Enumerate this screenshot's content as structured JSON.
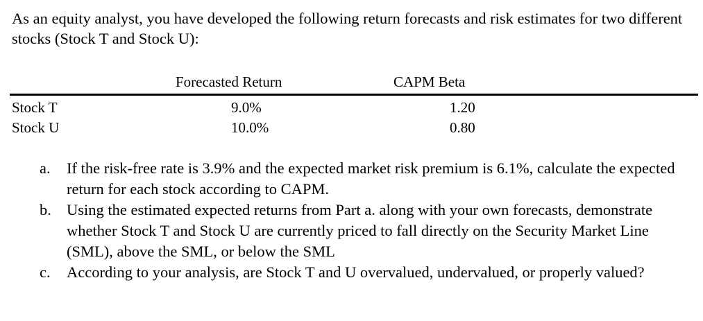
{
  "intro": {
    "text": "As an equity analyst, you have developed the following return forecasts and risk estimates for two different stocks (Stock T and Stock U):"
  },
  "table": {
    "columns": [
      "",
      "Forecasted Return",
      "CAPM Beta"
    ],
    "rows": [
      {
        "name": "Stock T",
        "forecasted_return": "9.0%",
        "capm_beta": "1.20"
      },
      {
        "name": "Stock U",
        "forecasted_return": "10.0%",
        "capm_beta": "0.80"
      }
    ]
  },
  "questions": [
    {
      "letter": "a.",
      "text": "If the risk-free rate is 3.9% and the expected market risk premium is 6.1%, calculate the expected return for each stock according to CAPM."
    },
    {
      "letter": "b.",
      "text": "Using the estimated expected returns from Part a. along with your own forecasts, demonstrate whether Stock T and Stock U are currently priced to fall directly on the Security Market Line (SML), above the SML, or below the SML"
    },
    {
      "letter": "c.",
      "text": "According to your analysis, are Stock T and U overvalued, undervalued, or properly valued?"
    }
  ]
}
